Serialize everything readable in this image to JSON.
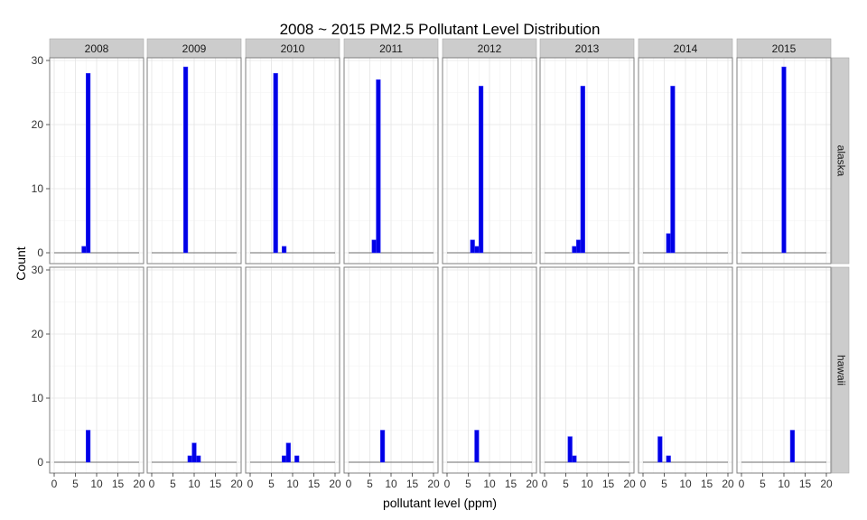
{
  "chart_data": {
    "type": "bar",
    "title": "2008 ~ 2015 PM2.5 Pollutant Level Distribution",
    "xlabel": "pollutant level (ppm)",
    "ylabel": "Count",
    "xlim": [
      0,
      20
    ],
    "ylim": [
      0,
      30
    ],
    "x_ticks": [
      "0",
      "5",
      "10",
      "15",
      "20"
    ],
    "y_ticks": [
      "0",
      "10",
      "20",
      "30"
    ],
    "grid": true,
    "bar_color": "#0000e6",
    "bar_edge_color": "#3a3aff",
    "strip_fill": "#cccccc",
    "bin_width": 1,
    "columns": [
      "2008",
      "2009",
      "2010",
      "2011",
      "2012",
      "2013",
      "2014",
      "2015"
    ],
    "rows": [
      "alaska",
      "hawaii"
    ],
    "panels": [
      {
        "row": "alaska",
        "col": "2008",
        "x": [
          7,
          8
        ],
        "values": [
          1,
          28
        ]
      },
      {
        "row": "alaska",
        "col": "2009",
        "x": [
          8
        ],
        "values": [
          29
        ]
      },
      {
        "row": "alaska",
        "col": "2010",
        "x": [
          6,
          8
        ],
        "values": [
          28,
          1
        ]
      },
      {
        "row": "alaska",
        "col": "2011",
        "x": [
          6,
          7
        ],
        "values": [
          2,
          27
        ]
      },
      {
        "row": "alaska",
        "col": "2012",
        "x": [
          6,
          7,
          8
        ],
        "values": [
          2,
          1,
          26
        ]
      },
      {
        "row": "alaska",
        "col": "2013",
        "x": [
          7,
          8,
          9
        ],
        "values": [
          1,
          2,
          26
        ]
      },
      {
        "row": "alaska",
        "col": "2014",
        "x": [
          6,
          7
        ],
        "values": [
          3,
          26
        ]
      },
      {
        "row": "alaska",
        "col": "2015",
        "x": [
          10
        ],
        "values": [
          29
        ]
      },
      {
        "row": "hawaii",
        "col": "2008",
        "x": [
          8
        ],
        "values": [
          5
        ]
      },
      {
        "row": "hawaii",
        "col": "2009",
        "x": [
          9,
          10,
          11
        ],
        "values": [
          1,
          3,
          1
        ]
      },
      {
        "row": "hawaii",
        "col": "2010",
        "x": [
          8,
          9,
          11
        ],
        "values": [
          1,
          3,
          1
        ]
      },
      {
        "row": "hawaii",
        "col": "2011",
        "x": [
          8
        ],
        "values": [
          5
        ]
      },
      {
        "row": "hawaii",
        "col": "2012",
        "x": [
          7
        ],
        "values": [
          5
        ]
      },
      {
        "row": "hawaii",
        "col": "2013",
        "x": [
          6,
          7
        ],
        "values": [
          4,
          1
        ]
      },
      {
        "row": "hawaii",
        "col": "2014",
        "x": [
          4,
          6
        ],
        "values": [
          4,
          1
        ]
      },
      {
        "row": "hawaii",
        "col": "2015",
        "x": [
          12
        ],
        "values": [
          5
        ]
      }
    ]
  }
}
